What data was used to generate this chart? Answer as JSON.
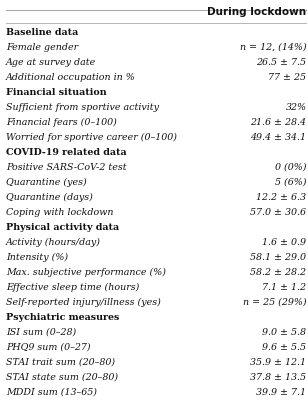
{
  "header": "During lockdown",
  "rows": [
    {
      "label": "Baseline data",
      "value": "",
      "bold": true
    },
    {
      "label": "Female gender",
      "value": "n = 12, (14%)",
      "bold": false,
      "italic_value": true
    },
    {
      "label": "Age at survey date",
      "value": "26.5 ± 7.5",
      "bold": false
    },
    {
      "label": "Additional occupation in %",
      "value": "77 ± 25",
      "bold": false
    },
    {
      "label": "Financial situation",
      "value": "",
      "bold": true
    },
    {
      "label": "Sufficient from sportive activity",
      "value": "32%",
      "bold": false
    },
    {
      "label": "Financial fears (0–100)",
      "value": "21.6 ± 28.4",
      "bold": false
    },
    {
      "label": "Worried for sportive career (0–100)",
      "value": "49.4 ± 34.1",
      "bold": false
    },
    {
      "label": "COVID-19 related data",
      "value": "",
      "bold": true
    },
    {
      "label": "Positive SARS-CoV-2 test",
      "value": "0 (0%)",
      "bold": false
    },
    {
      "label": "Quarantine (yes)",
      "value": "5 (6%)",
      "bold": false
    },
    {
      "label": "Quarantine (days)",
      "value": "12.2 ± 6.3",
      "bold": false
    },
    {
      "label": "Coping with lockdown",
      "value": "57.0 ± 30.6",
      "bold": false
    },
    {
      "label": "Physical activity data",
      "value": "",
      "bold": true
    },
    {
      "label": "Activity (hours/day)",
      "value": "1.6 ± 0.9",
      "bold": false
    },
    {
      "label": "Intensity (%)",
      "value": "58.1 ± 29.0",
      "bold": false
    },
    {
      "label": "Max. subjective performance (%)",
      "value": "58.2 ± 28.2",
      "bold": false
    },
    {
      "label": "Effective sleep time (hours)",
      "value": "7.1 ± 1.2",
      "bold": false
    },
    {
      "label": "Self-reported injury/illness (yes)",
      "value": "n = 25 (29%)",
      "bold": false,
      "italic_value": true
    },
    {
      "label": "Psychiatric measures",
      "value": "",
      "bold": true
    },
    {
      "label": "ISI sum (0–28)",
      "value": "9.0 ± 5.8",
      "bold": false
    },
    {
      "label": "PHQ9 sum (0–27)",
      "value": "9.6 ± 5.5",
      "bold": false
    },
    {
      "label": "STAI trait sum (20–80)",
      "value": "35.9 ± 12.1",
      "bold": false
    },
    {
      "label": "STAI state sum (20–80)",
      "value": "37.8 ± 13.5",
      "bold": false
    },
    {
      "label": "MDDI sum (13–65)",
      "value": "39.9 ± 7.1",
      "bold": false
    }
  ],
  "bg_color": "#ffffff",
  "line_color": "#aaaaaa",
  "text_color": "#111111",
  "font_size": 6.8,
  "header_font_size": 7.5,
  "fig_width": 3.08,
  "fig_height": 4.0,
  "dpi": 100
}
